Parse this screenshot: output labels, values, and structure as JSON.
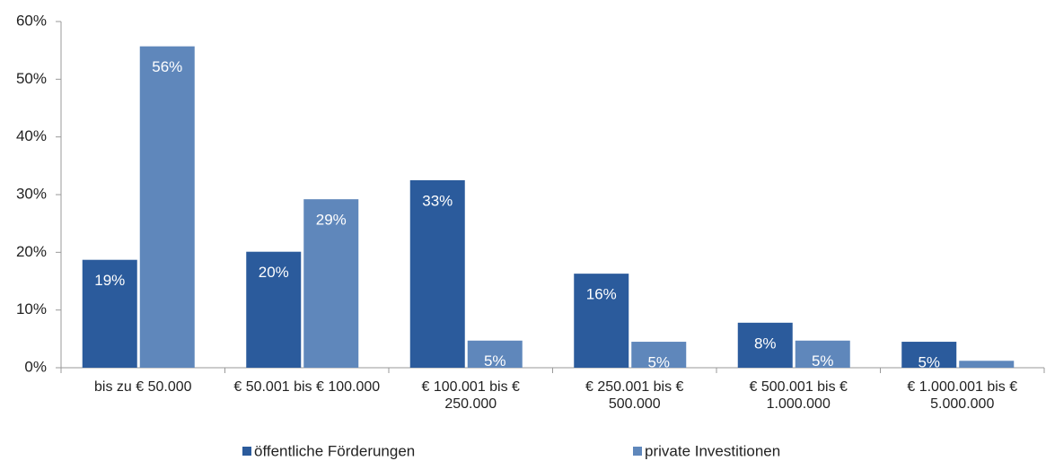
{
  "chart_data": {
    "type": "bar",
    "categories": [
      "bis zu € 50.000",
      "€ 50.001 bis € 100.000",
      "€ 100.001 bis € 250.000",
      "€ 250.001 bis € 500.000",
      "€ 500.001 bis € 1.000.000",
      "€ 1.000.001 bis € 5.000.000"
    ],
    "series": [
      {
        "name": "öffentliche Förderungen",
        "color": "#2b5b9c",
        "values": [
          18.7,
          20.1,
          32.5,
          16.3,
          7.8,
          4.5
        ],
        "value_labels": [
          "19%",
          "20%",
          "33%",
          "16%",
          "8%",
          "5%"
        ]
      },
      {
        "name": "private Investitionen",
        "color": "#5f87bb",
        "values": [
          55.7,
          29.2,
          4.7,
          4.5,
          4.7,
          1.2
        ],
        "value_labels": [
          "56%",
          "29%",
          "5%",
          "5%",
          "5%",
          null
        ]
      }
    ],
    "ylim": [
      0,
      60
    ],
    "yticks": [
      {
        "value": 0,
        "label": "0%"
      },
      {
        "value": 10,
        "label": "10%"
      },
      {
        "value": 20,
        "label": "20%"
      },
      {
        "value": 30,
        "label": "30%"
      },
      {
        "value": 40,
        "label": "40%"
      },
      {
        "value": 50,
        "label": "50%"
      },
      {
        "value": 60,
        "label": "60%"
      }
    ],
    "legend": "bottom"
  }
}
